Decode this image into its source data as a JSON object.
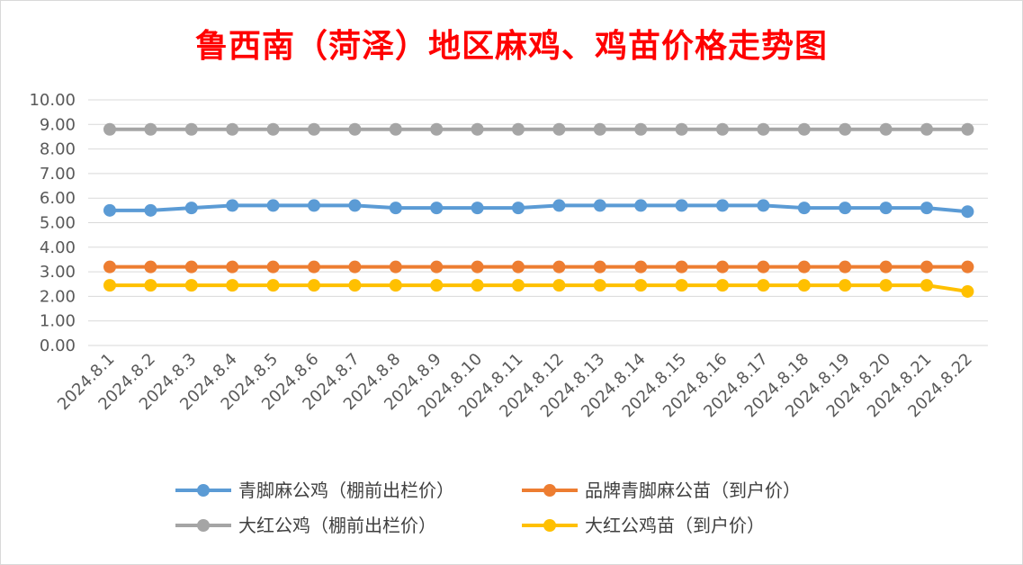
{
  "chart_data": {
    "type": "line",
    "title": "鲁西南（菏泽）地区麻鸡、鸡苗价格走势图",
    "categories": [
      "2024.8.1",
      "2024.8.2",
      "2024.8.3",
      "2024.8.4",
      "2024.8.5",
      "2024.8.6",
      "2024.8.7",
      "2024.8.8",
      "2024.8.9",
      "2024.8.10",
      "2024.8.11",
      "2024.8.12",
      "2024.8.13",
      "2024.8.14",
      "2024.8.15",
      "2024.8.16",
      "2024.8.17",
      "2024.8.18",
      "2024.8.19",
      "2024.8.20",
      "2024.8.21",
      "2024.8.22"
    ],
    "ylim": [
      0,
      10
    ],
    "yticks": [
      "0.00",
      "1.00",
      "2.00",
      "3.00",
      "4.00",
      "5.00",
      "6.00",
      "7.00",
      "8.00",
      "9.00",
      "10.00"
    ],
    "grid": true,
    "legend_position": "bottom",
    "series": [
      {
        "name": "青脚麻公鸡（棚前出栏价）",
        "color": "#5b9bd5",
        "values": [
          5.5,
          5.5,
          5.6,
          5.7,
          5.7,
          5.7,
          5.7,
          5.6,
          5.6,
          5.6,
          5.6,
          5.7,
          5.7,
          5.7,
          5.7,
          5.7,
          5.7,
          5.6,
          5.6,
          5.6,
          5.6,
          5.45
        ]
      },
      {
        "name": "品牌青脚麻公苗（到户价）",
        "color": "#ed7d31",
        "values": [
          3.2,
          3.2,
          3.2,
          3.2,
          3.2,
          3.2,
          3.2,
          3.2,
          3.2,
          3.2,
          3.2,
          3.2,
          3.2,
          3.2,
          3.2,
          3.2,
          3.2,
          3.2,
          3.2,
          3.2,
          3.2,
          3.2
        ]
      },
      {
        "name": "大红公鸡（棚前出栏价）",
        "color": "#a5a5a5",
        "values": [
          8.8,
          8.8,
          8.8,
          8.8,
          8.8,
          8.8,
          8.8,
          8.8,
          8.8,
          8.8,
          8.8,
          8.8,
          8.8,
          8.8,
          8.8,
          8.8,
          8.8,
          8.8,
          8.8,
          8.8,
          8.8,
          8.8
        ]
      },
      {
        "name": "大红公鸡苗（到户价）",
        "color": "#ffc000",
        "values": [
          2.45,
          2.45,
          2.45,
          2.45,
          2.45,
          2.45,
          2.45,
          2.45,
          2.45,
          2.45,
          2.45,
          2.45,
          2.45,
          2.45,
          2.45,
          2.45,
          2.45,
          2.45,
          2.45,
          2.45,
          2.45,
          2.2
        ]
      }
    ]
  }
}
